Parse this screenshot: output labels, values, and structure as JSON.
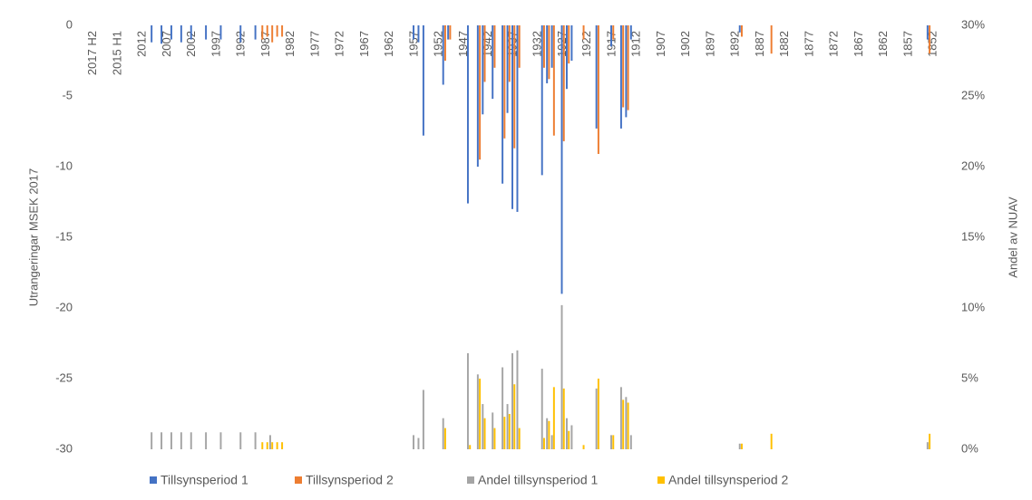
{
  "chart_data": {
    "type": "bar",
    "y_label": "Utrangeringar MSEK 2017",
    "y2_label": "Andel av NUAV",
    "categories": [
      "2017 H2",
      null,
      null,
      null,
      null,
      "2015 H1",
      null,
      null,
      null,
      null,
      "2012",
      null,
      null,
      null,
      null,
      "2007",
      null,
      null,
      null,
      null,
      "2002",
      null,
      null,
      null,
      null,
      "1997",
      null,
      null,
      null,
      null,
      "1992",
      null,
      null,
      null,
      null,
      "1987",
      null,
      null,
      null,
      null,
      "1982",
      null,
      null,
      null,
      null,
      "1977",
      null,
      null,
      null,
      null,
      "1972",
      null,
      null,
      null,
      null,
      "1967",
      null,
      null,
      null,
      null,
      "1962",
      null,
      null,
      null,
      null,
      "1957",
      null,
      null,
      null,
      null,
      "1952",
      null,
      null,
      null,
      null,
      "1947",
      null,
      null,
      null,
      null,
      "1942",
      null,
      null,
      null,
      null,
      "1937",
      null,
      null,
      null,
      null,
      "1932",
      null,
      null,
      null,
      null,
      "1927",
      null,
      null,
      null,
      null,
      "1922",
      null,
      null,
      null,
      null,
      "1917",
      null,
      null,
      null,
      null,
      "1912",
      null,
      null,
      null,
      null,
      "1907",
      null,
      null,
      null,
      null,
      "1902",
      null,
      null,
      null,
      null,
      "1897",
      null,
      null,
      null,
      null,
      "1892",
      null,
      null,
      null,
      null,
      "1887",
      null,
      null,
      null,
      null,
      "1882",
      null,
      null,
      null,
      null,
      "1877",
      null,
      null,
      null,
      null,
      "1872",
      null,
      null,
      null,
      null,
      "1867",
      null,
      null,
      null,
      null,
      "1862",
      null,
      null,
      null,
      null,
      "1857",
      null,
      null,
      null,
      null,
      "1852"
    ],
    "series": [
      {
        "name": "Tillsynsperiod 1",
        "color": "#4472c4",
        "values": [
          null,
          null,
          null,
          null,
          null,
          null,
          null,
          null,
          null,
          null,
          null,
          null,
          -1.2,
          null,
          -1.3,
          null,
          -1,
          null,
          -1.2,
          null,
          -1,
          null,
          null,
          -1,
          null,
          null,
          -1,
          null,
          null,
          null,
          -1.2,
          null,
          null,
          -1,
          null,
          null,
          null,
          null,
          null,
          null,
          null,
          null,
          null,
          null,
          null,
          null,
          null,
          null,
          null,
          null,
          null,
          null,
          null,
          null,
          null,
          null,
          null,
          null,
          null,
          null,
          null,
          null,
          null,
          null,
          null,
          -1,
          -1.2,
          -7.8,
          null,
          null,
          null,
          -4.2,
          -1,
          null,
          null,
          null,
          -12.6,
          null,
          -10,
          -6.3,
          null,
          -5.2,
          null,
          -11.2,
          -6.2,
          -13,
          -13.2,
          null,
          null,
          null,
          null,
          -10.6,
          -4.1,
          -3,
          null,
          -19,
          -4.5,
          -2.5,
          null,
          null,
          null,
          null,
          -7.3,
          null,
          null,
          -1.5,
          null,
          -7.3,
          -6.5,
          -1,
          null,
          null,
          null,
          null,
          null,
          null,
          null,
          null,
          null,
          null,
          null,
          null,
          null,
          null,
          null,
          null,
          null,
          null,
          null,
          null,
          null,
          -0.5,
          null,
          null,
          null,
          null,
          null,
          null,
          null,
          null,
          null,
          null,
          null,
          null,
          null,
          null,
          null,
          null,
          null,
          null,
          null,
          null,
          null,
          null,
          null,
          null,
          null,
          null,
          null,
          null,
          null,
          null,
          null,
          null,
          null,
          null,
          null,
          null,
          null,
          -1,
          null
        ]
      },
      {
        "name": "Tillsynsperiod 2",
        "color": "#ed7d31",
        "values": [
          null,
          null,
          null,
          null,
          null,
          null,
          null,
          null,
          null,
          null,
          null,
          null,
          null,
          null,
          null,
          null,
          null,
          null,
          null,
          null,
          null,
          null,
          null,
          null,
          null,
          null,
          null,
          null,
          null,
          null,
          null,
          null,
          null,
          null,
          -1,
          -0.8,
          -1.2,
          -0.8,
          -0.8,
          null,
          null,
          null,
          null,
          null,
          null,
          null,
          null,
          null,
          null,
          null,
          null,
          null,
          null,
          null,
          null,
          null,
          null,
          null,
          null,
          null,
          null,
          null,
          null,
          null,
          null,
          null,
          null,
          null,
          null,
          null,
          null,
          -2.5,
          -1,
          null,
          null,
          null,
          null,
          null,
          -9.5,
          -4,
          null,
          -3,
          null,
          -8,
          -4,
          -8.7,
          -3,
          null,
          null,
          null,
          null,
          -3,
          -3.8,
          -7.8,
          null,
          -8.2,
          -2.7,
          null,
          null,
          -1,
          null,
          null,
          -9.1,
          null,
          null,
          -1,
          null,
          -5.8,
          -6,
          null,
          null,
          null,
          null,
          null,
          null,
          null,
          null,
          null,
          null,
          null,
          null,
          null,
          null,
          null,
          null,
          null,
          null,
          null,
          null,
          null,
          null,
          -0.8,
          null,
          null,
          null,
          null,
          null,
          -2,
          null,
          null,
          null,
          null,
          null,
          null,
          null,
          null,
          null,
          null,
          null,
          null,
          null,
          null,
          null,
          null,
          null,
          null,
          null,
          null,
          null,
          null,
          null,
          null,
          null,
          null,
          null,
          null,
          null,
          null,
          null,
          -2,
          null
        ]
      },
      {
        "name": "Andel tillsynsperiod 1",
        "color": "#a5a5a5",
        "axis": "y2",
        "values": [
          null,
          null,
          null,
          null,
          null,
          null,
          null,
          null,
          null,
          null,
          null,
          null,
          1.2,
          null,
          1.2,
          null,
          1.2,
          null,
          1.2,
          null,
          1.2,
          null,
          null,
          1.2,
          null,
          null,
          1.2,
          null,
          null,
          null,
          1.2,
          null,
          null,
          1.2,
          null,
          null,
          1,
          null,
          null,
          null,
          null,
          null,
          null,
          null,
          null,
          null,
          null,
          null,
          null,
          null,
          null,
          null,
          null,
          null,
          null,
          null,
          null,
          null,
          null,
          null,
          null,
          null,
          null,
          null,
          null,
          1,
          0.8,
          4.2,
          null,
          null,
          null,
          2.2,
          null,
          null,
          null,
          null,
          6.8,
          null,
          5.3,
          3.2,
          null,
          2.6,
          null,
          5.8,
          3.2,
          6.8,
          7,
          null,
          null,
          null,
          null,
          5.7,
          2.2,
          1,
          null,
          10.2,
          2.2,
          1.7,
          null,
          null,
          null,
          null,
          4.3,
          null,
          null,
          1,
          null,
          4.4,
          3.7,
          1,
          null,
          null,
          null,
          null,
          null,
          null,
          null,
          null,
          null,
          null,
          null,
          null,
          null,
          null,
          null,
          null,
          null,
          null,
          null,
          null,
          null,
          0.4,
          null,
          null,
          null,
          null,
          null,
          null,
          null,
          null,
          null,
          null,
          null,
          null,
          null,
          null,
          null,
          null,
          null,
          null,
          null,
          null,
          null,
          null,
          null,
          null,
          null,
          null,
          null,
          null,
          null,
          null,
          null,
          null,
          null,
          null,
          null,
          null,
          null,
          0.5,
          null
        ]
      },
      {
        "name": "Andel tillsynsperiod 2",
        "color": "#ffc000",
        "axis": "y2",
        "values": [
          null,
          null,
          null,
          null,
          null,
          null,
          null,
          null,
          null,
          null,
          null,
          null,
          null,
          null,
          null,
          null,
          null,
          null,
          null,
          null,
          null,
          null,
          null,
          null,
          null,
          null,
          null,
          null,
          null,
          null,
          null,
          null,
          null,
          null,
          0.5,
          0.5,
          0.5,
          0.5,
          0.5,
          null,
          null,
          null,
          null,
          null,
          null,
          null,
          null,
          null,
          null,
          null,
          null,
          null,
          null,
          null,
          null,
          null,
          null,
          null,
          null,
          null,
          null,
          null,
          null,
          null,
          null,
          null,
          null,
          null,
          null,
          null,
          null,
          1.5,
          null,
          null,
          null,
          null,
          0.3,
          null,
          5,
          2.2,
          null,
          1.5,
          null,
          2.3,
          2.5,
          4.6,
          1.5,
          null,
          null,
          null,
          null,
          0.8,
          2,
          4.4,
          null,
          4.3,
          1.3,
          null,
          null,
          0.3,
          null,
          null,
          5,
          null,
          null,
          1,
          null,
          3.5,
          3.3,
          null,
          null,
          null,
          null,
          null,
          null,
          null,
          null,
          null,
          null,
          null,
          null,
          null,
          null,
          null,
          null,
          null,
          null,
          null,
          null,
          null,
          null,
          0.4,
          null,
          null,
          null,
          null,
          null,
          1.1,
          null,
          null,
          null,
          null,
          null,
          null,
          null,
          null,
          null,
          null,
          null,
          null,
          null,
          null,
          null,
          null,
          null,
          null,
          null,
          null,
          null,
          null,
          null,
          null,
          null,
          null,
          null,
          null,
          null,
          null,
          null,
          1.1,
          null
        ]
      }
    ],
    "ylim": [
      -30,
      0
    ],
    "yticks": [
      0,
      -5,
      -10,
      -15,
      -20,
      -25,
      -30
    ],
    "y2lim": [
      0,
      30
    ],
    "y2ticks": [
      {
        "value": 30,
        "label": "30%"
      },
      {
        "value": 25,
        "label": "25%"
      },
      {
        "value": 20,
        "label": "20%"
      },
      {
        "value": 15,
        "label": "15%"
      },
      {
        "value": 10,
        "label": "10%"
      },
      {
        "value": 5,
        "label": "5%"
      },
      {
        "value": 0,
        "label": "0%"
      }
    ],
    "grid": false,
    "legend": "bottom"
  }
}
